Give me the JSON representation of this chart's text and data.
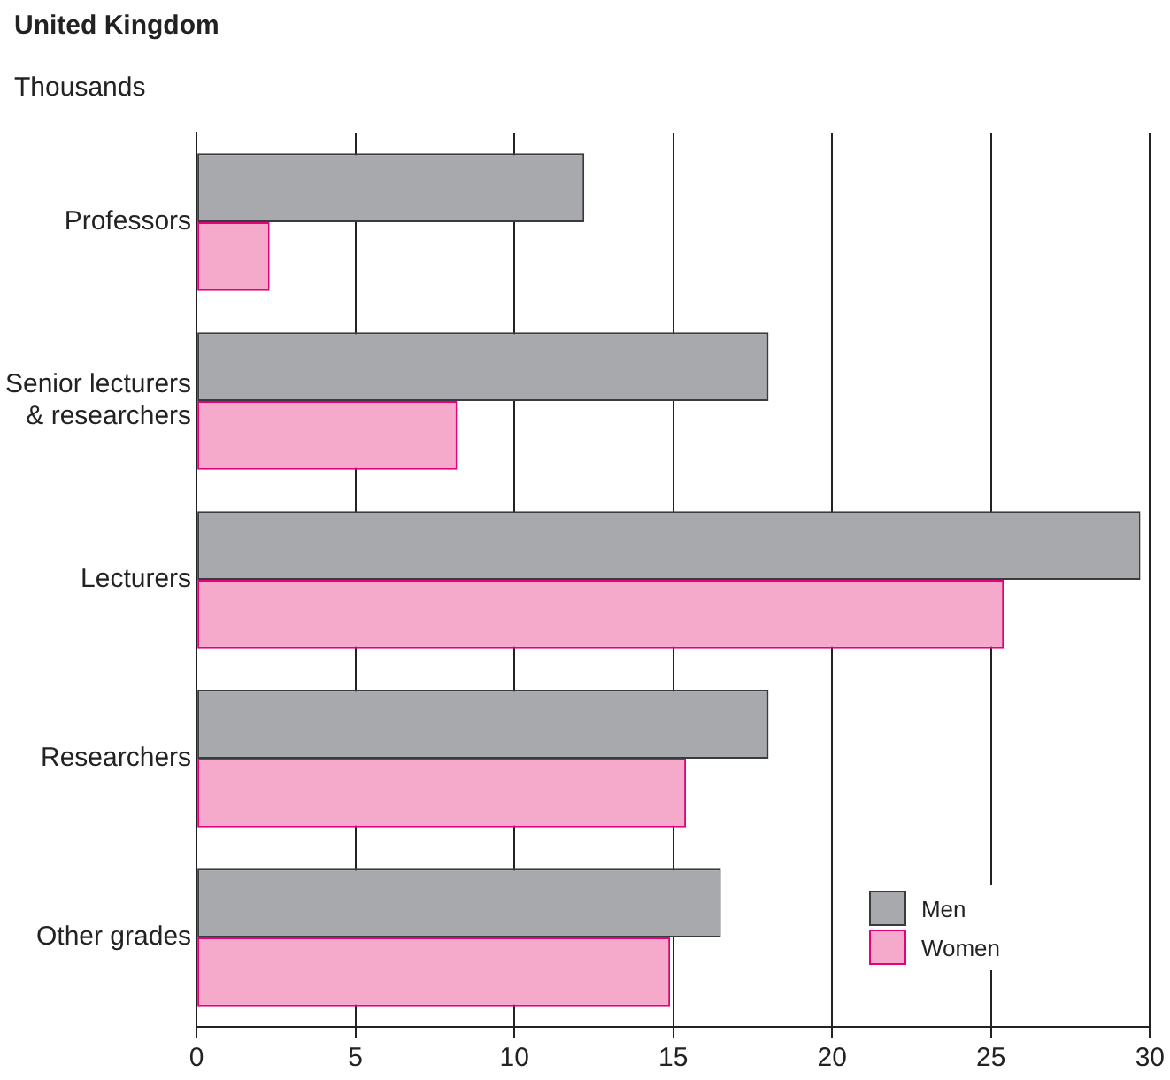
{
  "chart_data": {
    "type": "bar",
    "orientation": "horizontal",
    "title": "United Kingdom",
    "subtitle": "Thousands",
    "categories": [
      "Professors",
      "Senior lecturers & researchers",
      "Lecturers",
      "Researchers",
      "Other grades"
    ],
    "series": [
      {
        "name": "Men",
        "color": "#a7a9ac",
        "values": [
          12.2,
          18.0,
          29.7,
          18.0,
          16.5
        ]
      },
      {
        "name": "Women",
        "color": "#f5aacb",
        "values": [
          2.3,
          8.2,
          25.4,
          15.4,
          14.9
        ]
      }
    ],
    "xlim": [
      0,
      30
    ],
    "xticks": [
      0,
      5,
      10,
      15,
      20,
      25,
      30
    ],
    "grid": "x",
    "legend": "bottom right"
  }
}
